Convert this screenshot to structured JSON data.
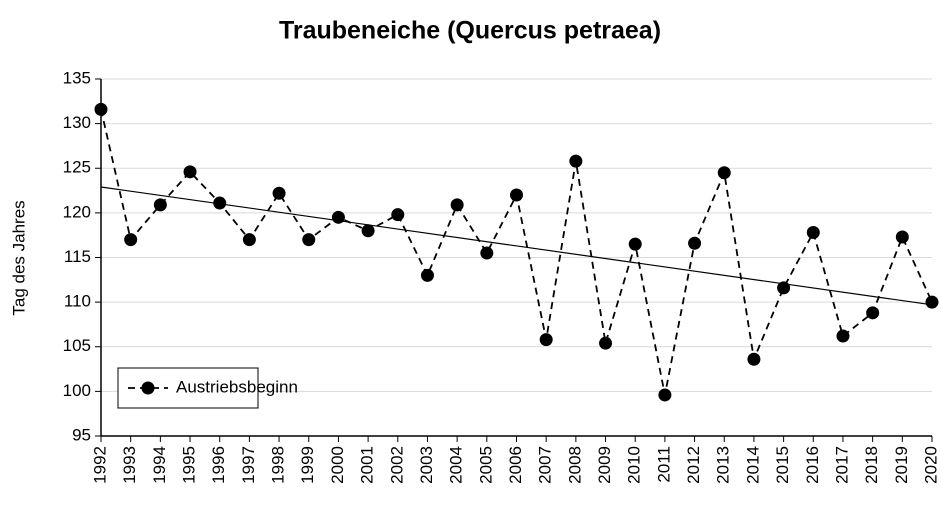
{
  "chart_data": {
    "type": "line",
    "title": "Traubeneiche (Quercus petraea)",
    "y_label": "Tag des Jahres",
    "x": [
      1992,
      1993,
      1994,
      1995,
      1996,
      1997,
      1998,
      1999,
      2000,
      2001,
      2002,
      2003,
      2004,
      2005,
      2006,
      2007,
      2008,
      2009,
      2010,
      2011,
      2012,
      2013,
      2014,
      2015,
      2016,
      2017,
      2018,
      2019,
      2020
    ],
    "xlim": [
      1992,
      2020
    ],
    "xticks": [
      1992,
      1993,
      1994,
      1995,
      1996,
      1997,
      1998,
      1999,
      2000,
      2001,
      2002,
      2003,
      2004,
      2005,
      2006,
      2007,
      2008,
      2009,
      2010,
      2011,
      2012,
      2013,
      2014,
      2015,
      2016,
      2017,
      2018,
      2019,
      2020
    ],
    "series": [
      {
        "name": "Austriebsbeginn",
        "color": "#000000",
        "values": [
          131.6,
          117.0,
          120.9,
          124.6,
          121.1,
          117.0,
          122.2,
          117.0,
          119.5,
          118.0,
          119.8,
          113.0,
          120.9,
          115.5,
          122.0,
          105.8,
          125.8,
          105.4,
          116.5,
          99.6,
          116.6,
          124.5,
          103.6,
          111.6,
          117.8,
          106.2,
          108.8,
          117.3,
          110.0
        ]
      }
    ],
    "trendline": {
      "x": [
        1992,
        2020
      ],
      "values": [
        122.9,
        109.7
      ],
      "color": "#000000"
    },
    "ylim": [
      95,
      135
    ],
    "yticks": [
      95,
      100,
      105,
      110,
      115,
      120,
      125,
      130,
      135
    ],
    "grid": true,
    "legend": "lower left"
  }
}
